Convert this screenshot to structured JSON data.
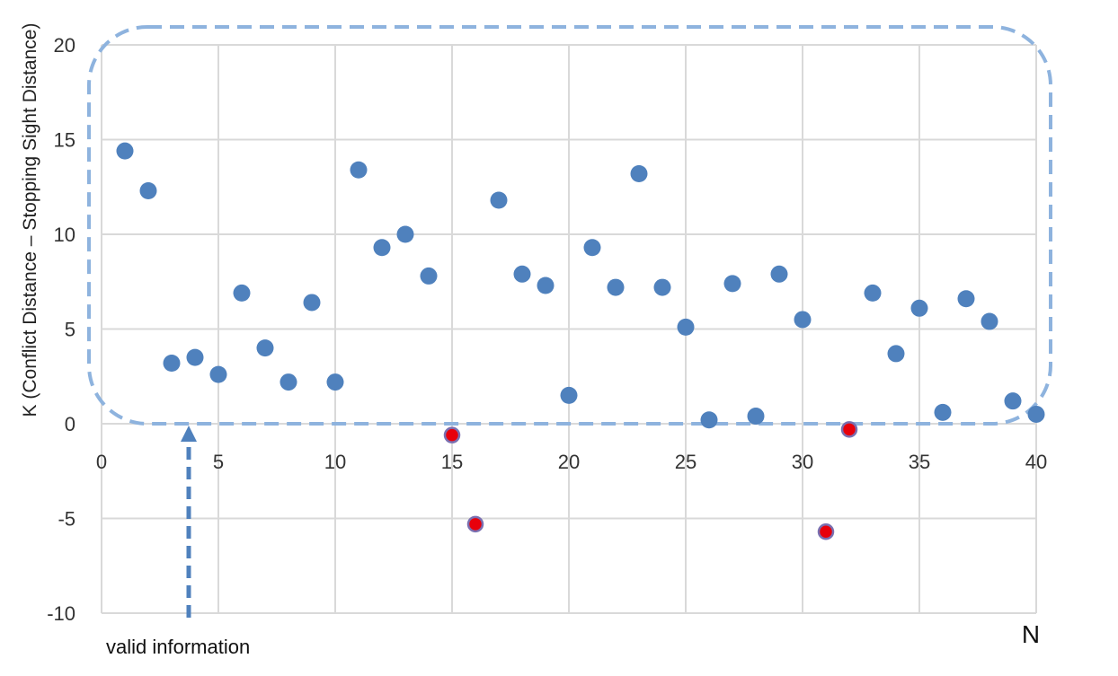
{
  "chart_data": {
    "type": "scatter",
    "xlabel": "N",
    "ylabel": "K (Conflict Distance – Stopping Sight Distance)",
    "xlim": [
      0,
      40
    ],
    "ylim": [
      -10,
      20
    ],
    "xticks": [
      0,
      5,
      10,
      15,
      20,
      25,
      30,
      35,
      40
    ],
    "yticks": [
      -10,
      -5,
      0,
      5,
      10,
      15,
      20
    ],
    "grid": true,
    "annotation": "valid information",
    "colors": {
      "positive": "#4f81bd",
      "negative": "#e8000b",
      "highlight_box": "#8eb3de",
      "grid": "#d9d9d9"
    },
    "points": [
      {
        "x": 1,
        "y": 14.4
      },
      {
        "x": 2,
        "y": 12.3
      },
      {
        "x": 3,
        "y": 3.2
      },
      {
        "x": 4,
        "y": 3.5
      },
      {
        "x": 5,
        "y": 2.6
      },
      {
        "x": 6,
        "y": 6.9
      },
      {
        "x": 7,
        "y": 4.0
      },
      {
        "x": 8,
        "y": 2.2
      },
      {
        "x": 9,
        "y": 6.4
      },
      {
        "x": 10,
        "y": 2.2
      },
      {
        "x": 11,
        "y": 13.4
      },
      {
        "x": 12,
        "y": 9.3
      },
      {
        "x": 13,
        "y": 10.0
      },
      {
        "x": 14,
        "y": 7.8
      },
      {
        "x": 15,
        "y": -0.6
      },
      {
        "x": 16,
        "y": -5.3
      },
      {
        "x": 17,
        "y": 11.8
      },
      {
        "x": 18,
        "y": 7.9
      },
      {
        "x": 19,
        "y": 7.3
      },
      {
        "x": 20,
        "y": 1.5
      },
      {
        "x": 21,
        "y": 9.3
      },
      {
        "x": 22,
        "y": 7.2
      },
      {
        "x": 23,
        "y": 13.2
      },
      {
        "x": 24,
        "y": 7.2
      },
      {
        "x": 25,
        "y": 5.1
      },
      {
        "x": 26,
        "y": 0.2
      },
      {
        "x": 27,
        "y": 7.4
      },
      {
        "x": 28,
        "y": 0.4
      },
      {
        "x": 29,
        "y": 7.9
      },
      {
        "x": 30,
        "y": 5.5
      },
      {
        "x": 31,
        "y": -5.7
      },
      {
        "x": 32,
        "y": -0.3
      },
      {
        "x": 33,
        "y": 6.9
      },
      {
        "x": 34,
        "y": 3.7
      },
      {
        "x": 35,
        "y": 6.1
      },
      {
        "x": 36,
        "y": 0.6
      },
      {
        "x": 37,
        "y": 6.6
      },
      {
        "x": 38,
        "y": 5.4
      },
      {
        "x": 39,
        "y": 1.2
      },
      {
        "x": 40,
        "y": 0.5
      }
    ]
  }
}
